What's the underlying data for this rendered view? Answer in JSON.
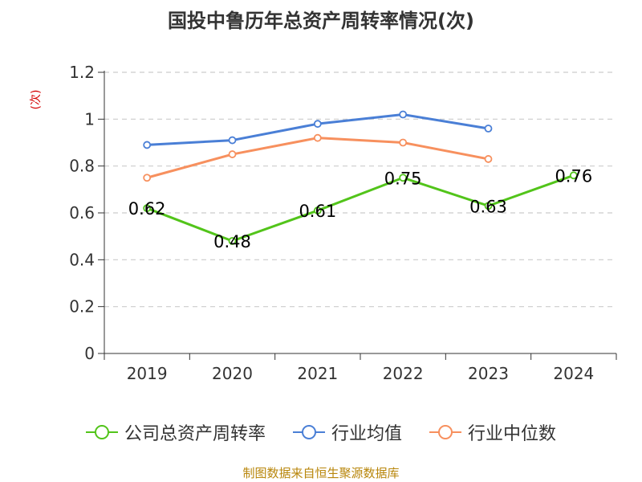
{
  "chart_data": {
    "type": "line",
    "title": "国投中鲁历年总资产周转率情况(次)",
    "ylabel": "(次)",
    "xlabel": "",
    "categories": [
      "2019",
      "2020",
      "2021",
      "2022",
      "2023",
      "2024"
    ],
    "ylim": [
      0,
      1.2
    ],
    "yticks": [
      "0",
      "0.2",
      "0.4",
      "0.6",
      "0.8",
      "1",
      "1.2"
    ],
    "grid": true,
    "legend_position": "bottom",
    "series": [
      {
        "name": "公司总资产周转率",
        "color": "#52c41a",
        "values": [
          0.62,
          0.48,
          0.61,
          0.75,
          0.63,
          0.76
        ],
        "labels": [
          "0.62",
          "0.48",
          "0.61",
          "0.75",
          "0.63",
          "0.76"
        ]
      },
      {
        "name": "行业均值",
        "color": "#4a7fd6",
        "values": [
          0.89,
          0.91,
          0.98,
          1.02,
          0.96,
          null
        ]
      },
      {
        "name": "行业中位数",
        "color": "#f7905e",
        "values": [
          0.75,
          0.85,
          0.92,
          0.9,
          0.83,
          null
        ]
      }
    ]
  },
  "source": "制图数据来自恒生聚源数据库"
}
